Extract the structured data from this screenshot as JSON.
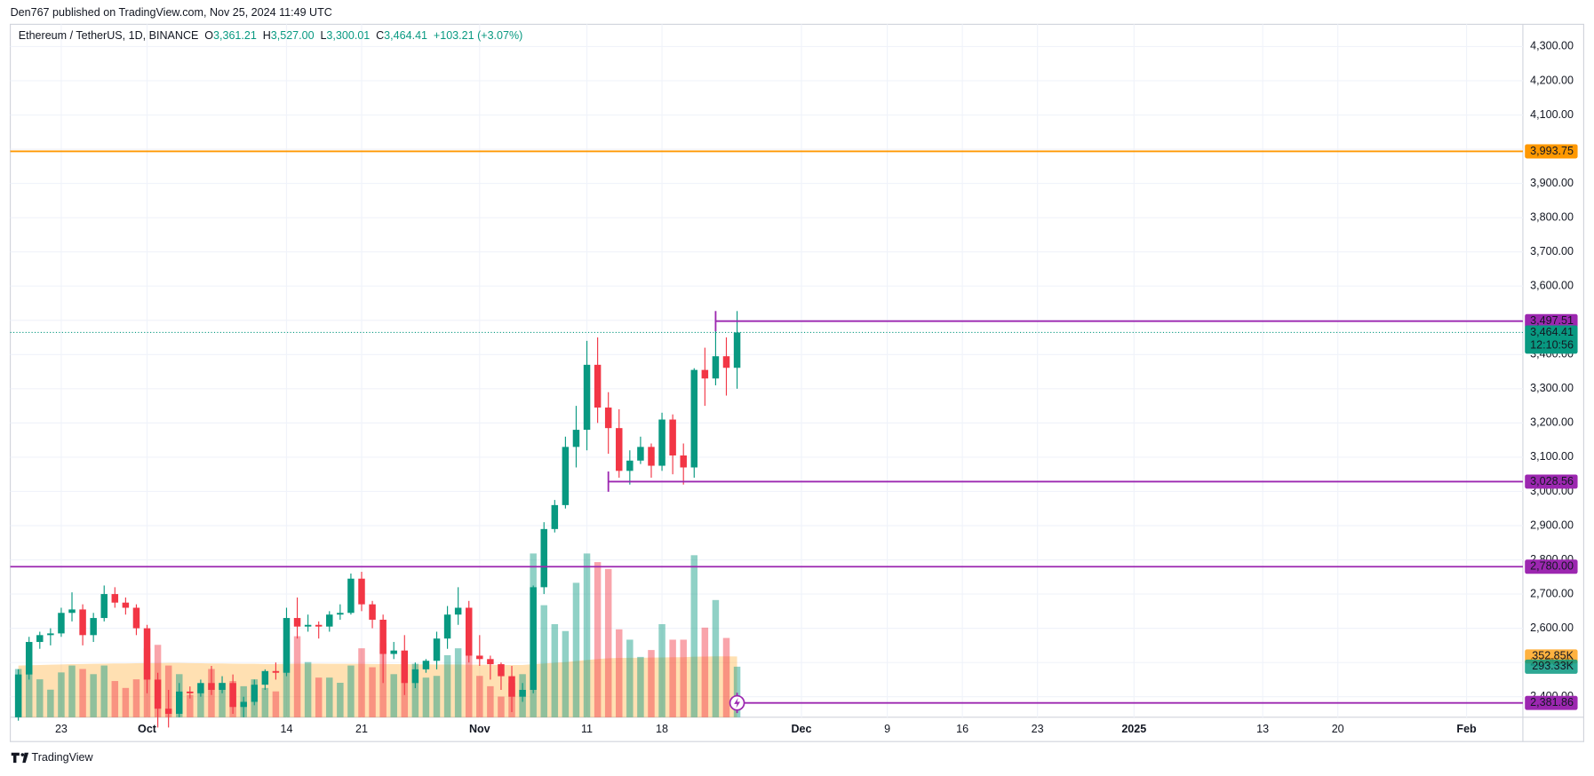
{
  "chart_data": {
    "type": "candlestick",
    "header": "Den767 published on TradingView.com, Nov 25, 2024 11:49 UTC",
    "title": "Ethereum / TetherUS, 1D, BINANCE",
    "ohlc_legend": [
      "O",
      "3,361.21",
      "H",
      "3,527.00",
      "L",
      "3,300.01",
      "C",
      "3,464.41"
    ],
    "change": "+103.21 (+3.07%)",
    "brand": "TradingView",
    "up_color": "#089981",
    "down_color": "#f23645",
    "open": [
      2340,
      2465,
      2560,
      2580,
      2585,
      2645,
      2655,
      2580,
      2630,
      2700,
      2675,
      2660,
      2600,
      2450,
      2365,
      2350,
      2415,
      2410,
      2440,
      2420,
      2440,
      2370,
      2385,
      2435,
      2475,
      2470,
      2630,
      2605,
      2610,
      2605,
      2640,
      2645,
      2745,
      2670,
      2625,
      2525,
      2535,
      2440,
      2480,
      2505,
      2570,
      2640,
      2660,
      2520,
      2510,
      2495,
      2460,
      2400,
      2420,
      2720,
      2890,
      2960,
      3130,
      3180,
      3370,
      3245,
      3185,
      3060,
      3090,
      3130,
      3075,
      3210,
      3105,
      3070,
      3355,
      3330,
      3395,
      3361.21
    ],
    "high": [
      2480,
      2575,
      2590,
      2600,
      2660,
      2705,
      2670,
      2645,
      2725,
      2720,
      2690,
      2670,
      2610,
      2470,
      2420,
      2440,
      2430,
      2450,
      2490,
      2460,
      2465,
      2400,
      2450,
      2480,
      2500,
      2660,
      2690,
      2640,
      2620,
      2650,
      2670,
      2760,
      2765,
      2680,
      2640,
      2560,
      2580,
      2500,
      2510,
      2590,
      2665,
      2720,
      2680,
      2580,
      2520,
      2500,
      2490,
      2440,
      2725,
      2910,
      2975,
      3160,
      3250,
      3440,
      3450,
      3290,
      3240,
      3120,
      3160,
      3140,
      3230,
      3225,
      3140,
      3360,
      3420,
      3497.51,
      3450,
      3527
    ],
    "low": [
      2330,
      2450,
      2540,
      2550,
      2575,
      2620,
      2550,
      2560,
      2620,
      2660,
      2640,
      2580,
      2410,
      2310,
      2310,
      2340,
      2395,
      2400,
      2405,
      2410,
      2350,
      2340,
      2375,
      2420,
      2450,
      2460,
      2570,
      2590,
      2570,
      2590,
      2625,
      2640,
      2650,
      2600,
      2440,
      2510,
      2405,
      2425,
      2470,
      2480,
      2540,
      2610,
      2500,
      2490,
      2450,
      2420,
      2355,
      2385,
      2410,
      2700,
      2880,
      2950,
      3070,
      3120,
      3200,
      3110,
      3040,
      3020,
      3080,
      3040,
      3060,
      3050,
      3020,
      3040,
      3250,
      3310,
      3280,
      3300.01
    ],
    "close": [
      2465,
      2560,
      2580,
      2585,
      2645,
      2655,
      2580,
      2630,
      2700,
      2675,
      2660,
      2600,
      2450,
      2365,
      2350,
      2415,
      2410,
      2440,
      2420,
      2440,
      2370,
      2385,
      2435,
      2475,
      2470,
      2630,
      2605,
      2610,
      2605,
      2640,
      2645,
      2745,
      2670,
      2625,
      2525,
      2535,
      2440,
      2480,
      2505,
      2570,
      2640,
      2660,
      2520,
      2510,
      2495,
      2460,
      2400,
      2420,
      2720,
      2890,
      2960,
      3130,
      3180,
      3370,
      3245,
      3185,
      3060,
      3090,
      3130,
      3075,
      3210,
      3105,
      3070,
      3355,
      3330,
      3395,
      3361.21,
      3464.41
    ],
    "volume": [
      280,
      300,
      220,
      160,
      260,
      300,
      280,
      250,
      300,
      210,
      170,
      220,
      400,
      420,
      300,
      250,
      130,
      160,
      280,
      200,
      210,
      180,
      220,
      170,
      150,
      450,
      470,
      320,
      230,
      230,
      200,
      300,
      400,
      290,
      430,
      250,
      350,
      310,
      230,
      240,
      360,
      400,
      390,
      240,
      180,
      120,
      200,
      250,
      950,
      650,
      540,
      500,
      780,
      950,
      900,
      860,
      510,
      450,
      350,
      390,
      540,
      450,
      450,
      940,
      520,
      680,
      460,
      293.33
    ],
    "volume_ma": [
      300,
      302,
      303,
      305,
      306,
      308,
      309,
      310,
      311,
      312,
      312,
      313,
      314,
      314,
      315,
      315,
      314,
      313,
      312,
      312,
      311,
      310,
      310,
      309,
      309,
      310,
      311,
      311,
      311,
      310,
      310,
      310,
      310,
      309,
      309,
      308,
      308,
      307,
      307,
      306,
      306,
      306,
      305,
      305,
      304,
      303,
      303,
      303,
      308,
      312,
      316,
      320,
      326,
      332,
      338,
      342,
      344,
      345,
      345,
      346,
      347,
      348,
      348,
      351,
      352,
      353,
      353,
      352.85
    ],
    "volume_ma_label": "352.85K",
    "volume_label": "293.33K",
    "volume_ma_color": "#ff9800",
    "volume_ylim": [
      0,
      4020
    ],
    "last_price": {
      "value": 3464.41,
      "label": "3,464.41"
    },
    "countdown": "12:10:56",
    "levels": [
      {
        "value": 3993.75,
        "label": "3,993.75",
        "color": "#ff9800"
      },
      {
        "value": 3497.51,
        "label": "3,497.51",
        "color": "#9c27b0",
        "start": 65
      },
      {
        "value": 3028.56,
        "label": "3,028.56",
        "color": "#9c27b0",
        "start": 55
      },
      {
        "value": 2780.0,
        "label": "2,780.00",
        "color": "#9c27b0"
      },
      {
        "value": 2381.86,
        "label": "2,381.86",
        "color": "#9c27b0",
        "start": 67
      }
    ],
    "ylim": [
      2340,
      4365
    ],
    "xlim": [
      -0.75,
      140.25
    ],
    "yticks": [
      {
        "value": 2400,
        "label": "2,400.00"
      },
      {
        "value": 2500,
        "label": "2,500.00"
      },
      {
        "value": 2600,
        "label": "2,600.00"
      },
      {
        "value": 2700,
        "label": "2,700.00"
      },
      {
        "value": 2800,
        "label": "2,800.00"
      },
      {
        "value": 2900,
        "label": "2,900.00"
      },
      {
        "value": 3000,
        "label": "3,000.00"
      },
      {
        "value": 3100,
        "label": "3,100.00"
      },
      {
        "value": 3200,
        "label": "3,200.00"
      },
      {
        "value": 3300,
        "label": "3,300.00"
      },
      {
        "value": 3400,
        "label": "3,400.00"
      },
      {
        "value": 3500,
        "label": "3,500.00"
      },
      {
        "value": 3600,
        "label": "3,600.00"
      },
      {
        "value": 3700,
        "label": "3,700.00"
      },
      {
        "value": 3800,
        "label": "3,800.00"
      },
      {
        "value": 3900,
        "label": "3,900.00"
      },
      {
        "value": 4000,
        "label": "4,000.00"
      },
      {
        "value": 4100,
        "label": "4,100.00"
      },
      {
        "value": 4200,
        "label": "4,200.00"
      },
      {
        "value": 4300,
        "label": "4,300.00"
      }
    ],
    "xticks": [
      {
        "value": 4,
        "label": "23"
      },
      {
        "value": 12,
        "label": "Oct"
      },
      {
        "value": 25,
        "label": "14"
      },
      {
        "value": 32,
        "label": "21"
      },
      {
        "value": 43,
        "label": "Nov"
      },
      {
        "value": 53,
        "label": "11"
      },
      {
        "value": 60,
        "label": "18"
      },
      {
        "value": 73,
        "label": "Dec"
      },
      {
        "value": 81,
        "label": "9"
      },
      {
        "value": 88,
        "label": "16"
      },
      {
        "value": 95,
        "label": "23"
      },
      {
        "value": 104,
        "label": "2025"
      },
      {
        "value": 116,
        "label": "13"
      },
      {
        "value": 123,
        "label": "20"
      },
      {
        "value": 135,
        "label": "Feb"
      }
    ],
    "grid": true
  }
}
